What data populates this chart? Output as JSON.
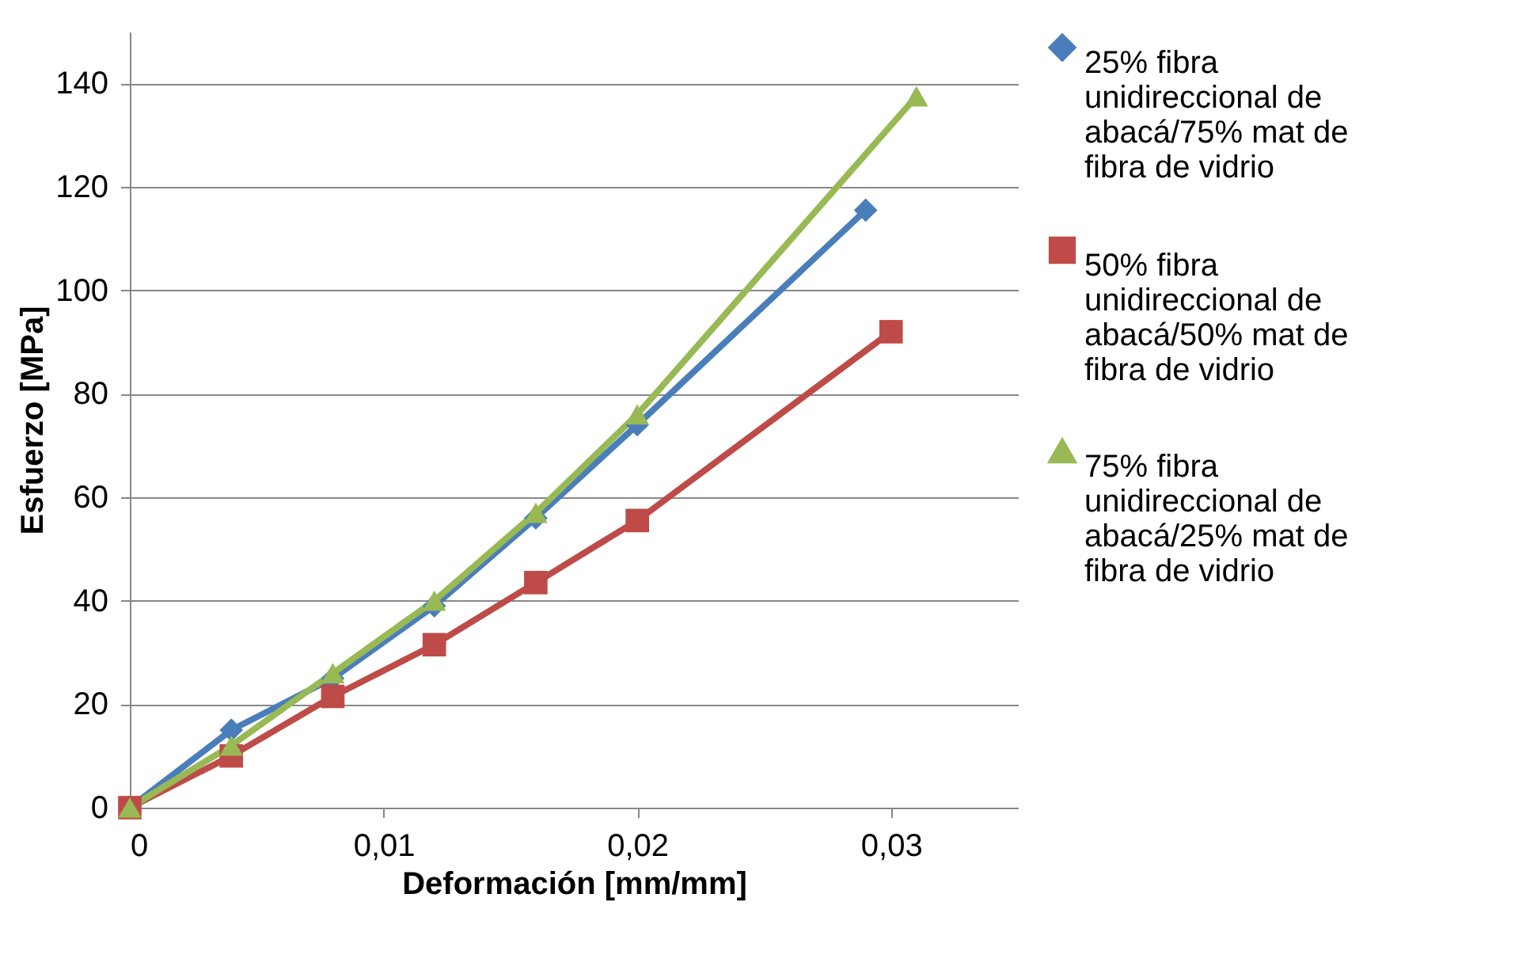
{
  "chart_data": {
    "type": "line",
    "xlabel": "Deformación [mm/mm]",
    "ylabel": "Esfuerzo [MPa]",
    "xlim": [
      0,
      0.035
    ],
    "xticks": [
      0,
      {
        "value": 0.01,
        "label": "0,01"
      },
      {
        "value": 0.02,
        "label": "0,02"
      },
      {
        "value": 0.03,
        "label": "0,03"
      }
    ],
    "ylim": [
      0,
      150
    ],
    "yticks": [
      0,
      20,
      40,
      60,
      80,
      100,
      120,
      140
    ],
    "grid": "y",
    "legend": "right",
    "series": [
      {
        "name": "25% fibra unidireccional de abacá/75% mat de fibra de vidrio",
        "color": "#4a7ebb",
        "marker": "diamond",
        "x": [
          0,
          0.004,
          0.008,
          0.012,
          0.016,
          0.02,
          0.029
        ],
        "values": [
          0,
          15,
          25,
          39,
          56,
          74,
          115.5
        ]
      },
      {
        "name": "50% fibra unidireccional de abacá/50% mat de fibra de vidrio",
        "color": "#be4b48",
        "marker": "square",
        "x": [
          0,
          0.004,
          0.008,
          0.012,
          0.016,
          0.02,
          0.03
        ],
        "values": [
          0,
          10,
          21.5,
          31.5,
          43.5,
          55.5,
          92
        ]
      },
      {
        "name": "75% fibra unidireccional de abacá/25% mat de fibra de vidrio",
        "color": "#98b954",
        "marker": "triangle",
        "x": [
          0,
          0.004,
          0.008,
          0.012,
          0.016,
          0.02,
          0.031
        ],
        "values": [
          0,
          12,
          26,
          40,
          57,
          76,
          137.5
        ]
      }
    ]
  }
}
